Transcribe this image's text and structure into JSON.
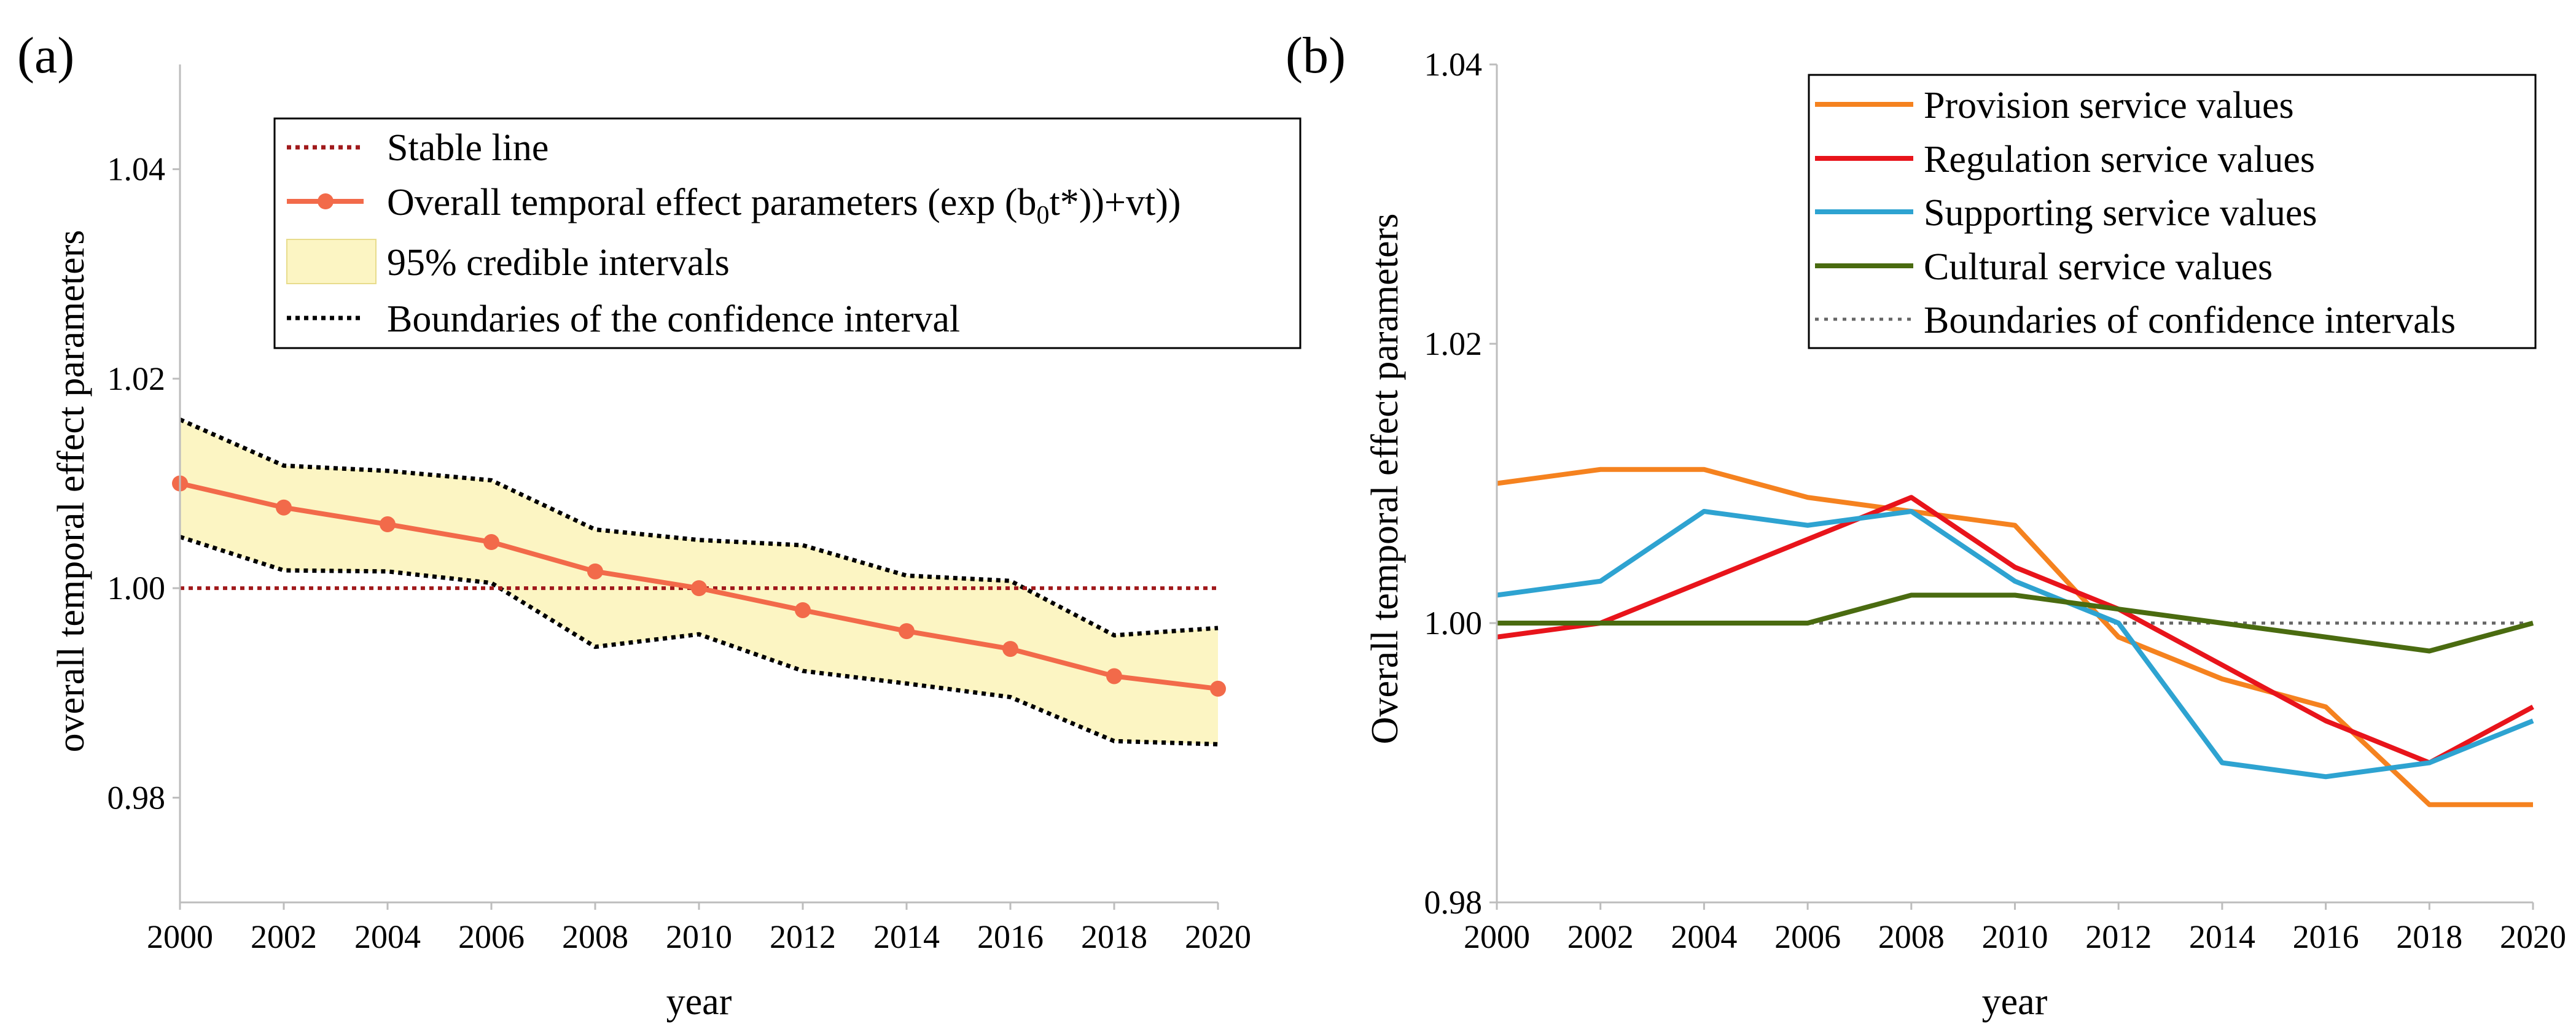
{
  "chart_data": [
    {
      "panel_label": "(a)",
      "type": "line",
      "x": [
        2000,
        2002,
        2004,
        2006,
        2008,
        2010,
        2012,
        2014,
        2016,
        2018,
        2020
      ],
      "xlabel": "year",
      "ylabel": "overall temporal effect parameters",
      "xlim": [
        2000,
        2020
      ],
      "ylim": [
        0.97,
        1.05
      ],
      "x_ticks": [
        "2000",
        "2002",
        "2004",
        "2006",
        "2008",
        "2010",
        "2012",
        "2014",
        "2016",
        "2018",
        "2020"
      ],
      "y_ticks": [
        {
          "value": 0.98,
          "label": "0.98"
        },
        {
          "value": 1.0,
          "label": "1.00"
        },
        {
          "value": 1.02,
          "label": "1.02"
        },
        {
          "value": 1.04,
          "label": "1.04"
        }
      ],
      "stable_line": 1.0,
      "series": [
        {
          "name": "Overall temporal effect parameters",
          "values": [
            1.01,
            1.0077,
            1.0061,
            1.0044,
            1.0016,
            1.0,
            0.9979,
            0.9959,
            0.9942,
            0.9916,
            0.9904
          ]
        }
      ],
      "ci_upper": [
        1.0161,
        1.0117,
        1.0112,
        1.0103,
        1.0056,
        1.0046,
        1.0041,
        1.0012,
        1.0007,
        0.9955,
        0.9962
      ],
      "ci_lower": [
        1.0049,
        1.0017,
        1.0016,
        1.0005,
        0.9944,
        0.9956,
        0.9921,
        0.9909,
        0.9896,
        0.9854,
        0.9851
      ],
      "colors": {
        "line": "#f26a4a",
        "band": "#fcf5c3",
        "stable": "#a0191b",
        "boundary": "#000000"
      },
      "legend": {
        "stable": "Stable line",
        "series_prefix": "Overall temporal effect parameters (exp (b",
        "series_sub": "0",
        "series_suffix": "t*))+vt))",
        "band": "95% credible intervals",
        "boundary": "Boundaries of the confidence interval"
      }
    },
    {
      "panel_label": "(b)",
      "type": "line",
      "x": [
        2000,
        2002,
        2004,
        2006,
        2008,
        2010,
        2012,
        2014,
        2016,
        2018,
        2020
      ],
      "xlabel": "year",
      "ylabel": "Overall temporal effect parameters",
      "xlim": [
        2000,
        2020
      ],
      "ylim": [
        0.98,
        1.04
      ],
      "x_ticks": [
        "2000",
        "2002",
        "2004",
        "2006",
        "2008",
        "2010",
        "2012",
        "2014",
        "2016",
        "2018",
        "2020"
      ],
      "y_ticks": [
        {
          "value": 0.98,
          "label": "0.98"
        },
        {
          "value": 1.0,
          "label": "1.00"
        },
        {
          "value": 1.02,
          "label": "1.02"
        },
        {
          "value": 1.04,
          "label": "1.04"
        }
      ],
      "boundary_line": 1.0,
      "series": [
        {
          "name": "Provision service values",
          "color": "#f5821f",
          "values": [
            1.01,
            1.011,
            1.011,
            1.009,
            1.008,
            1.007,
            0.999,
            0.996,
            0.994,
            0.987,
            0.987
          ]
        },
        {
          "name": "Regulation service values",
          "color": "#e8141b",
          "values": [
            0.999,
            1.0,
            1.003,
            1.006,
            1.009,
            1.004,
            1.001,
            0.997,
            0.993,
            0.99,
            0.994
          ]
        },
        {
          "name": "Supporting service values",
          "color": "#2ea3d1",
          "values": [
            1.002,
            1.003,
            1.008,
            1.007,
            1.008,
            1.003,
            1.0,
            0.99,
            0.989,
            0.99,
            0.993
          ]
        },
        {
          "name": "Cultural service values",
          "color": "#4a6b10",
          "values": [
            1.0,
            1.0,
            1.0,
            1.0,
            1.002,
            1.002,
            1.001,
            1.0,
            0.999,
            0.998,
            1.0
          ]
        }
      ],
      "boundary_legend": "Boundaries of confidence intervals",
      "boundary_color": "#666666"
    }
  ]
}
